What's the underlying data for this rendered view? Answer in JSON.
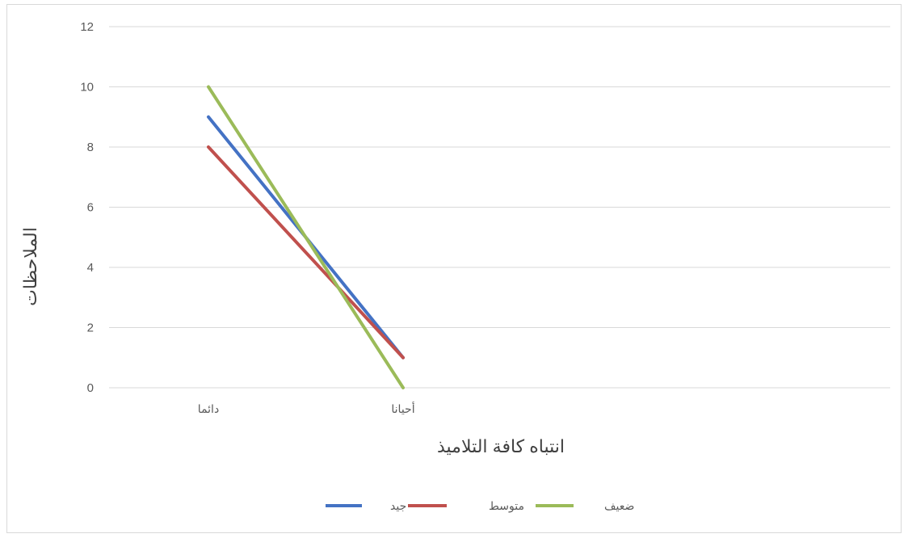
{
  "chart_data": {
    "type": "line",
    "title": "",
    "xlabel": "انتباه كافة التلاميذ",
    "ylabel": "الملاحظات",
    "categories": [
      "دائما",
      "أحيانا"
    ],
    "ylim": [
      0,
      12
    ],
    "yticks": [
      0,
      2,
      4,
      6,
      8,
      10,
      12
    ],
    "grid": true,
    "legend_position": "bottom",
    "series": [
      {
        "name": "جيد",
        "values": [
          9,
          1
        ],
        "color": "#4472c4"
      },
      {
        "name": "متوسط",
        "values": [
          8,
          1
        ],
        "color": "#c0504d"
      },
      {
        "name": "ضعيف",
        "values": [
          10,
          0
        ],
        "color": "#9bbb59"
      }
    ]
  }
}
